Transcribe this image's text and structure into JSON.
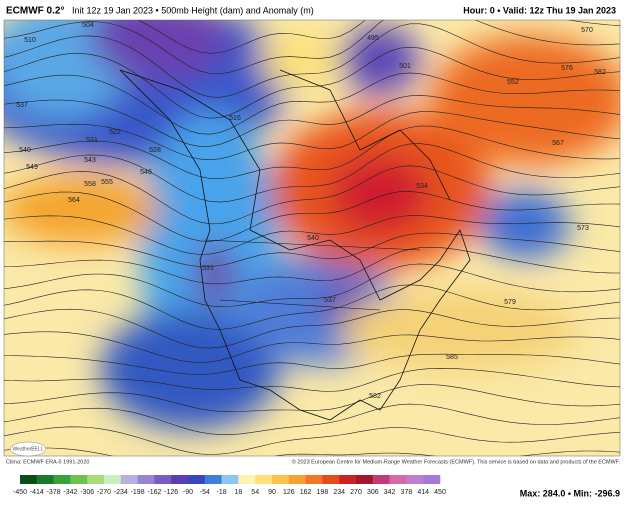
{
  "header": {
    "model": "ECMWF 0.2°",
    "run": "Init 12z 19 Jan 2023 • 500mb Height (dam) and Anomaly (m)",
    "valid": "Hour: 0 • Valid: 12z Thu 19 Jan 2023"
  },
  "contour_labels": [
    "510",
    "504",
    "537",
    "531",
    "522",
    "540",
    "549",
    "543",
    "558",
    "555",
    "564",
    "516",
    "528",
    "546",
    "495",
    "501",
    "552",
    "576",
    "570",
    "582",
    "567",
    "573",
    "579",
    "585",
    "582",
    "537",
    "531",
    "534",
    "540"
  ],
  "footer": {
    "logo": "WeatherBELL",
    "clima": "Clima: ECMWF ERA-5 1991-2020",
    "copyright": "© 2023 European Centre for Medium-Range Weather Forecasts (ECMWF). This service is based on data and products of the ECMWF.",
    "stats": "Max: 284.0 • Min: -296.9"
  },
  "colorbar": {
    "ticks": [
      -450,
      -414,
      -378,
      -342,
      -306,
      -270,
      -234,
      -198,
      -162,
      -126,
      -90,
      -54,
      -18,
      18,
      54,
      90,
      126,
      162,
      198,
      234,
      270,
      306,
      342,
      378,
      414,
      450
    ]
  }
}
